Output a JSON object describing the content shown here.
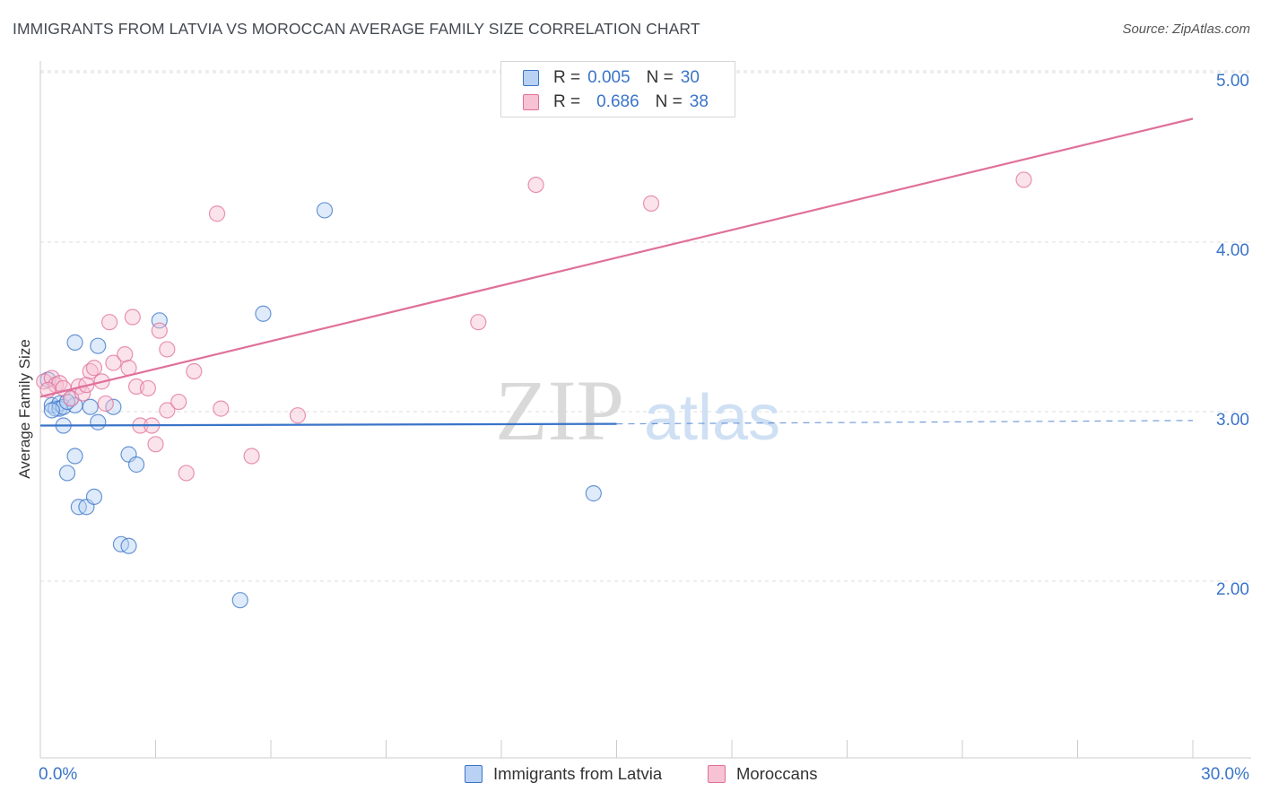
{
  "header": {
    "title": "IMMIGRANTS FROM LATVIA VS MOROCCAN AVERAGE FAMILY SIZE CORRELATION CHART",
    "source": "Source: ZipAtlas.com"
  },
  "watermark": {
    "zip": "ZIP",
    "atlas": "atlas"
  },
  "legend": {
    "rows": [
      {
        "r_label": "R =",
        "r_value": "0.005",
        "n_label": "N =",
        "n_value": "30"
      },
      {
        "r_label": "R =",
        "r_value": "0.686",
        "n_label": "N =",
        "n_value": "38"
      }
    ]
  },
  "colors": {
    "latvia": "#3a74c8",
    "latvia_fill": "#b9d2f3",
    "moroccans": "#e0709a",
    "moroccans_fill": "#f7c2d3",
    "axis_text": "#3a74c8",
    "grid": "#dddddd"
  },
  "chart_data": {
    "type": "scatter",
    "xlabel": "",
    "ylabel": "Average Family Size",
    "xlim": [
      0,
      30
    ],
    "ylim": [
      1.0,
      5.1
    ],
    "x_tick_labels": {
      "min": "0.0%",
      "max": "30.0%"
    },
    "y_ticks": [
      {
        "value": 2.0,
        "label": "2.00"
      },
      {
        "value": 3.0,
        "label": "3.00"
      },
      {
        "value": 4.0,
        "label": "4.00"
      },
      {
        "value": 5.0,
        "label": "5.00"
      }
    ],
    "grid": "horizontal dashed",
    "legend_placement": "bottom-center",
    "series": [
      {
        "name": "Immigrants from Latvia",
        "r": 0.005,
        "n": 30,
        "trend": {
          "x": [
            0,
            15
          ],
          "y": [
            2.96,
            2.97
          ],
          "dashed_extension": [
            15,
            30
          ],
          "dashed_y": [
            2.97,
            2.99
          ]
        },
        "points": [
          [
            0.2,
            3.23
          ],
          [
            0.3,
            3.08
          ],
          [
            0.4,
            3.06
          ],
          [
            0.5,
            3.09
          ],
          [
            0.5,
            3.06
          ],
          [
            0.6,
            3.07
          ],
          [
            0.6,
            2.96
          ],
          [
            0.8,
            3.12
          ],
          [
            0.7,
            2.68
          ],
          [
            0.9,
            3.08
          ],
          [
            0.9,
            3.45
          ],
          [
            0.9,
            2.78
          ],
          [
            1.0,
            2.48
          ],
          [
            1.2,
            2.48
          ],
          [
            1.3,
            3.07
          ],
          [
            1.4,
            2.54
          ],
          [
            1.5,
            2.98
          ],
          [
            1.5,
            3.43
          ],
          [
            1.9,
            3.07
          ],
          [
            2.1,
            2.26
          ],
          [
            2.3,
            2.25
          ],
          [
            2.3,
            2.79
          ],
          [
            2.5,
            2.73
          ],
          [
            3.1,
            3.58
          ],
          [
            5.2,
            1.93
          ],
          [
            5.8,
            3.62
          ],
          [
            7.4,
            4.23
          ],
          [
            14.4,
            2.56
          ],
          [
            0.3,
            3.05
          ],
          [
            0.7,
            3.1
          ]
        ]
      },
      {
        "name": "Moroccans",
        "r": 0.686,
        "n": 38,
        "trend": {
          "x": [
            0,
            30
          ],
          "y": [
            3.13,
            4.77
          ]
        },
        "points": [
          [
            0.1,
            3.22
          ],
          [
            0.3,
            3.24
          ],
          [
            0.4,
            3.2
          ],
          [
            0.5,
            3.21
          ],
          [
            0.6,
            3.18
          ],
          [
            0.8,
            3.12
          ],
          [
            1.0,
            3.19
          ],
          [
            1.1,
            3.15
          ],
          [
            1.2,
            3.2
          ],
          [
            1.3,
            3.28
          ],
          [
            1.4,
            3.3
          ],
          [
            1.6,
            3.22
          ],
          [
            1.7,
            3.09
          ],
          [
            1.8,
            3.57
          ],
          [
            1.9,
            3.33
          ],
          [
            2.2,
            3.38
          ],
          [
            2.3,
            3.3
          ],
          [
            2.4,
            3.6
          ],
          [
            2.5,
            3.19
          ],
          [
            2.6,
            2.96
          ],
          [
            2.8,
            3.18
          ],
          [
            2.9,
            2.96
          ],
          [
            3.0,
            2.85
          ],
          [
            3.1,
            3.52
          ],
          [
            3.3,
            3.05
          ],
          [
            3.3,
            3.41
          ],
          [
            3.6,
            3.1
          ],
          [
            3.8,
            2.68
          ],
          [
            4.0,
            3.28
          ],
          [
            4.6,
            4.21
          ],
          [
            4.7,
            3.06
          ],
          [
            5.5,
            2.78
          ],
          [
            6.7,
            3.02
          ],
          [
            11.4,
            3.57
          ],
          [
            12.9,
            4.38
          ],
          [
            15.9,
            4.27
          ],
          [
            25.6,
            4.41
          ],
          [
            0.2,
            3.17
          ]
        ]
      }
    ]
  }
}
